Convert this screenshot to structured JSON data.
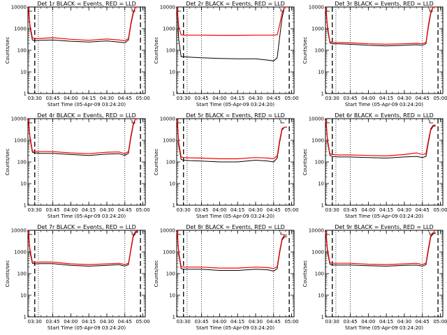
{
  "chart_data": [
    {
      "type": "line",
      "title": "Det 1r BLACK = Events, RED = LLD",
      "xlabel": "Start Time (05-Apr-09 03:24:20)",
      "ylabel": "Counts/sec",
      "x_ticks": [
        "03:30",
        "03:45",
        "04:00",
        "04:15",
        "04:30",
        "04:45",
        "05:00"
      ],
      "y_ticks": [
        "1",
        "10",
        "100",
        "1000",
        "10000"
      ],
      "y_scale": "log",
      "ylim": [
        1,
        10000
      ],
      "series": [
        {
          "color": "#000000",
          "x": [
            "03:24",
            "03:25",
            "03:26",
            "03:28",
            "03:30",
            "03:35",
            "03:45",
            "04:00",
            "04:15",
            "04:30",
            "04:40",
            "04:45",
            "04:48",
            "04:50",
            "04:52",
            "04:54",
            "04:56"
          ],
          "y": [
            10000,
            6000,
            1200,
            300,
            280,
            290,
            300,
            260,
            240,
            270,
            240,
            220,
            300,
            1500,
            5000,
            10000,
            10000
          ]
        },
        {
          "color": "#ff0000",
          "x": [
            "03:24",
            "03:25",
            "03:26",
            "03:28",
            "03:30",
            "03:35",
            "03:45",
            "04:00",
            "04:15",
            "04:30",
            "04:40",
            "04:45",
            "04:48",
            "04:50",
            "04:52",
            "04:54",
            "04:56"
          ],
          "y": [
            10000,
            7000,
            1500,
            380,
            340,
            350,
            380,
            320,
            290,
            330,
            300,
            270,
            360,
            1800,
            6000,
            10000,
            10000
          ]
        }
      ]
    },
    {
      "type": "line",
      "title": "Det 2r BLACK = Events, RED = LLD",
      "xlabel": "Start Time (05-Apr-09 03:24:20)",
      "ylabel": "Counts/sec",
      "x_ticks": [
        "03:30",
        "03:45",
        "04:00",
        "04:15",
        "04:30",
        "04:45",
        "05:00"
      ],
      "y_ticks": [
        "1",
        "10",
        "100",
        "1000",
        "10000"
      ],
      "y_scale": "log",
      "ylim": [
        1,
        10000
      ],
      "series": [
        {
          "color": "#000000",
          "x": [
            "03:24",
            "03:25",
            "03:26",
            "03:28",
            "03:30",
            "03:35",
            "03:45",
            "04:00",
            "04:15",
            "04:30",
            "04:40",
            "04:45",
            "04:48",
            "04:50",
            "04:52",
            "04:54",
            "04:56"
          ],
          "y": [
            10000,
            5000,
            300,
            50,
            50,
            48,
            45,
            42,
            40,
            40,
            35,
            32,
            45,
            400,
            3000,
            10000,
            10000
          ]
        },
        {
          "color": "#ff0000",
          "x": [
            "03:24",
            "03:25",
            "03:26",
            "03:28",
            "03:30",
            "03:35",
            "03:45",
            "04:00",
            "04:15",
            "04:30",
            "04:40",
            "04:45",
            "04:48",
            "04:50",
            "04:52",
            "04:54",
            "04:56"
          ],
          "y": [
            10000,
            6000,
            1200,
            520,
            500,
            500,
            500,
            490,
            490,
            500,
            500,
            500,
            520,
            1500,
            5000,
            10000,
            10000
          ]
        }
      ]
    },
    {
      "type": "line",
      "title": "Det 3r BLACK = Events, RED = LLD",
      "xlabel": "Start Time (05-Apr-09 03:24:20)",
      "ylabel": "Counts/sec",
      "x_ticks": [
        "03:30",
        "03:45",
        "04:00",
        "04:15",
        "04:30",
        "04:45",
        "05:00"
      ],
      "y_ticks": [
        "1",
        "10",
        "100",
        "1000",
        "10000"
      ],
      "y_scale": "log",
      "ylim": [
        1,
        10000
      ],
      "series": [
        {
          "color": "#000000",
          "x": [
            "03:24",
            "03:25",
            "03:26",
            "03:28",
            "03:30",
            "03:35",
            "03:45",
            "04:00",
            "04:15",
            "04:30",
            "04:40",
            "04:45",
            "04:48",
            "04:50",
            "04:52",
            "04:54",
            "04:56"
          ],
          "y": [
            10000,
            5000,
            1000,
            220,
            200,
            200,
            190,
            170,
            160,
            170,
            180,
            170,
            200,
            1200,
            5000,
            10000,
            10000
          ]
        },
        {
          "color": "#ff0000",
          "x": [
            "03:24",
            "03:25",
            "03:26",
            "03:28",
            "03:30",
            "03:35",
            "03:45",
            "04:00",
            "04:15",
            "04:30",
            "04:40",
            "04:45",
            "04:48",
            "04:50",
            "04:52",
            "04:54",
            "04:56"
          ],
          "y": [
            10000,
            6000,
            1300,
            250,
            230,
            230,
            220,
            200,
            190,
            200,
            210,
            200,
            230,
            1500,
            6000,
            10000,
            10000
          ]
        }
      ]
    },
    {
      "type": "line",
      "title": "Det 4r BLACK = Events, RED = LLD",
      "xlabel": "Start Time (05-Apr-09 03:24:20)",
      "ylabel": "Counts/sec",
      "x_ticks": [
        "03:30",
        "03:45",
        "04:00",
        "04:15",
        "04:30",
        "04:45",
        "05:00"
      ],
      "y_ticks": [
        "1",
        "10",
        "100",
        "1000",
        "10000"
      ],
      "y_scale": "log",
      "ylim": [
        1,
        10000
      ],
      "series": [
        {
          "color": "#000000",
          "x": [
            "03:24",
            "03:25",
            "03:26",
            "03:28",
            "03:30",
            "03:35",
            "03:45",
            "04:00",
            "04:15",
            "04:30",
            "04:40",
            "04:45",
            "04:48",
            "04:50",
            "04:52",
            "04:54",
            "04:56"
          ],
          "y": [
            10000,
            6000,
            1200,
            280,
            260,
            250,
            250,
            220,
            200,
            230,
            240,
            200,
            250,
            1300,
            5000,
            10000,
            10000
          ]
        },
        {
          "color": "#ff0000",
          "x": [
            "03:24",
            "03:25",
            "03:26",
            "03:28",
            "03:30",
            "03:35",
            "03:45",
            "04:00",
            "04:15",
            "04:30",
            "04:40",
            "04:45",
            "04:48",
            "04:50",
            "04:52",
            "04:54",
            "04:56"
          ],
          "y": [
            10000,
            7000,
            1500,
            330,
            300,
            300,
            300,
            260,
            240,
            280,
            290,
            240,
            300,
            1600,
            6000,
            10000,
            10000
          ]
        }
      ]
    },
    {
      "type": "line",
      "title": "Det 5r BLACK = Events, RED = LLD",
      "xlabel": "Start Time (05-Apr-09 03:24:20)",
      "ylabel": "Counts/sec",
      "x_ticks": [
        "03:30",
        "03:45",
        "04:00",
        "04:15",
        "04:30",
        "04:45",
        "05:00"
      ],
      "y_ticks": [
        "1",
        "10",
        "100",
        "1000",
        "10000"
      ],
      "y_scale": "log",
      "ylim": [
        1,
        10000
      ],
      "series": [
        {
          "color": "#000000",
          "x": [
            "03:24",
            "03:25",
            "03:26",
            "03:28",
            "03:30",
            "03:35",
            "03:45",
            "04:00",
            "04:15",
            "04:30",
            "04:40",
            "04:45",
            "04:48",
            "04:50",
            "04:52",
            "04:54",
            "04:56"
          ],
          "y": [
            10000,
            5000,
            600,
            130,
            120,
            115,
            110,
            100,
            100,
            120,
            110,
            100,
            150,
            800,
            3000,
            4000,
            4000
          ]
        },
        {
          "color": "#ff0000",
          "x": [
            "03:24",
            "03:25",
            "03:26",
            "03:28",
            "03:30",
            "03:35",
            "03:45",
            "04:00",
            "04:15",
            "04:30",
            "04:40",
            "04:45",
            "04:48",
            "04:50",
            "04:52",
            "04:54",
            "04:56"
          ],
          "y": [
            10000,
            6000,
            800,
            170,
            160,
            155,
            150,
            140,
            140,
            160,
            150,
            140,
            190,
            1000,
            3500,
            4000,
            4000
          ]
        }
      ]
    },
    {
      "type": "line",
      "title": "Det 6r BLACK = Events, RED = LLD",
      "xlabel": "Start Time (05-Apr-09 03:24:20)",
      "ylabel": "Counts/sec",
      "x_ticks": [
        "03:30",
        "03:45",
        "04:00",
        "04:15",
        "04:30",
        "04:45",
        "05:00"
      ],
      "y_ticks": [
        "1",
        "10",
        "100",
        "1000",
        "10000"
      ],
      "y_scale": "log",
      "ylim": [
        1,
        10000
      ],
      "series": [
        {
          "color": "#000000",
          "x": [
            "03:24",
            "03:25",
            "03:26",
            "03:28",
            "03:30",
            "03:35",
            "03:45",
            "04:00",
            "04:15",
            "04:30",
            "04:40",
            "04:45",
            "04:48",
            "04:50",
            "04:52",
            "04:54",
            "04:56"
          ],
          "y": [
            10000,
            5000,
            900,
            200,
            180,
            170,
            170,
            160,
            150,
            170,
            180,
            160,
            180,
            800,
            3000,
            4500,
            4500
          ]
        },
        {
          "color": "#ff0000",
          "x": [
            "03:24",
            "03:25",
            "03:26",
            "03:28",
            "03:30",
            "03:35",
            "03:45",
            "04:00",
            "04:15",
            "04:30",
            "04:40",
            "04:45",
            "04:48",
            "04:50",
            "04:52",
            "04:54",
            "04:56"
          ],
          "y": [
            10000,
            6000,
            1100,
            240,
            220,
            210,
            210,
            200,
            190,
            220,
            260,
            220,
            240,
            1000,
            3500,
            5000,
            5000
          ]
        }
      ]
    },
    {
      "type": "line",
      "title": "Det 7r BLACK = Events, RED = LLD",
      "xlabel": "Start Time (05-Apr-09 03:24:20)",
      "ylabel": "Counts/sec",
      "x_ticks": [
        "03:30",
        "03:45",
        "04:00",
        "04:15",
        "04:30",
        "04:45",
        "05:00"
      ],
      "y_ticks": [
        "1",
        "10",
        "100",
        "1000",
        "10000"
      ],
      "y_scale": "log",
      "ylim": [
        1,
        10000
      ],
      "series": [
        {
          "color": "#000000",
          "x": [
            "03:24",
            "03:25",
            "03:26",
            "03:28",
            "03:30",
            "03:35",
            "03:45",
            "04:00",
            "04:15",
            "04:30",
            "04:40",
            "04:45",
            "04:48",
            "04:50",
            "04:52",
            "04:54",
            "04:56"
          ],
          "y": [
            10000,
            5000,
            1000,
            300,
            280,
            290,
            290,
            240,
            220,
            240,
            260,
            220,
            260,
            1200,
            5000,
            8000,
            8000
          ]
        },
        {
          "color": "#ff0000",
          "x": [
            "03:24",
            "03:25",
            "03:26",
            "03:28",
            "03:30",
            "03:35",
            "03:45",
            "04:00",
            "04:15",
            "04:30",
            "04:40",
            "04:45",
            "04:48",
            "04:50",
            "04:52",
            "04:54",
            "04:56"
          ],
          "y": [
            10000,
            6000,
            1300,
            350,
            330,
            340,
            340,
            280,
            260,
            280,
            300,
            260,
            300,
            1400,
            6000,
            9000,
            9000
          ]
        }
      ]
    },
    {
      "type": "line",
      "title": "Det 8r BLACK = Events, RED = LLD",
      "xlabel": "Start Time (05-Apr-09 03:24:20)",
      "ylabel": "Counts/sec",
      "x_ticks": [
        "03:30",
        "03:45",
        "04:00",
        "04:15",
        "04:30",
        "04:45",
        "05:00"
      ],
      "y_ticks": [
        "1",
        "10",
        "100",
        "1000",
        "10000"
      ],
      "y_scale": "log",
      "ylim": [
        1,
        10000
      ],
      "series": [
        {
          "color": "#000000",
          "x": [
            "03:24",
            "03:25",
            "03:26",
            "03:28",
            "03:30",
            "03:35",
            "03:45",
            "04:00",
            "04:15",
            "04:30",
            "04:40",
            "04:45",
            "04:48",
            "04:50",
            "04:52",
            "04:54",
            "04:56"
          ],
          "y": [
            10000,
            5000,
            800,
            170,
            160,
            160,
            160,
            140,
            140,
            160,
            150,
            130,
            170,
            900,
            3500,
            5000,
            5000
          ]
        },
        {
          "color": "#ff0000",
          "x": [
            "03:24",
            "03:25",
            "03:26",
            "03:28",
            "03:30",
            "03:35",
            "03:45",
            "04:00",
            "04:15",
            "04:30",
            "04:40",
            "04:45",
            "04:48",
            "04:50",
            "04:52",
            "04:54",
            "04:56"
          ],
          "y": [
            10000,
            6000,
            1000,
            210,
            200,
            200,
            200,
            180,
            180,
            200,
            190,
            170,
            210,
            1100,
            4000,
            6000,
            6000
          ]
        }
      ]
    },
    {
      "type": "line",
      "title": "Det 9r BLACK = Events, RED = LLD",
      "xlabel": "Start Time (05-Apr-09 03:24:20)",
      "ylabel": "Counts/sec",
      "x_ticks": [
        "03:30",
        "03:45",
        "04:00",
        "04:15",
        "04:30",
        "04:45",
        "05:00"
      ],
      "y_ticks": [
        "1",
        "10",
        "100",
        "1000",
        "10000"
      ],
      "y_scale": "log",
      "ylim": [
        1,
        10000
      ],
      "series": [
        {
          "color": "#000000",
          "x": [
            "03:24",
            "03:25",
            "03:26",
            "03:28",
            "03:30",
            "03:35",
            "03:45",
            "04:00",
            "04:15",
            "04:30",
            "04:40",
            "04:45",
            "04:48",
            "04:50",
            "04:52",
            "04:54",
            "04:56"
          ],
          "y": [
            10000,
            5000,
            1000,
            270,
            250,
            250,
            250,
            230,
            220,
            240,
            250,
            220,
            260,
            1200,
            5000,
            7000,
            7000
          ]
        },
        {
          "color": "#ff0000",
          "x": [
            "03:24",
            "03:25",
            "03:26",
            "03:28",
            "03:30",
            "03:35",
            "03:45",
            "04:00",
            "04:15",
            "04:30",
            "04:40",
            "04:45",
            "04:48",
            "04:50",
            "04:52",
            "04:54",
            "04:56"
          ],
          "y": [
            10000,
            6000,
            1300,
            320,
            300,
            300,
            300,
            270,
            260,
            280,
            300,
            260,
            310,
            1500,
            6000,
            8000,
            8000
          ]
        }
      ]
    }
  ]
}
